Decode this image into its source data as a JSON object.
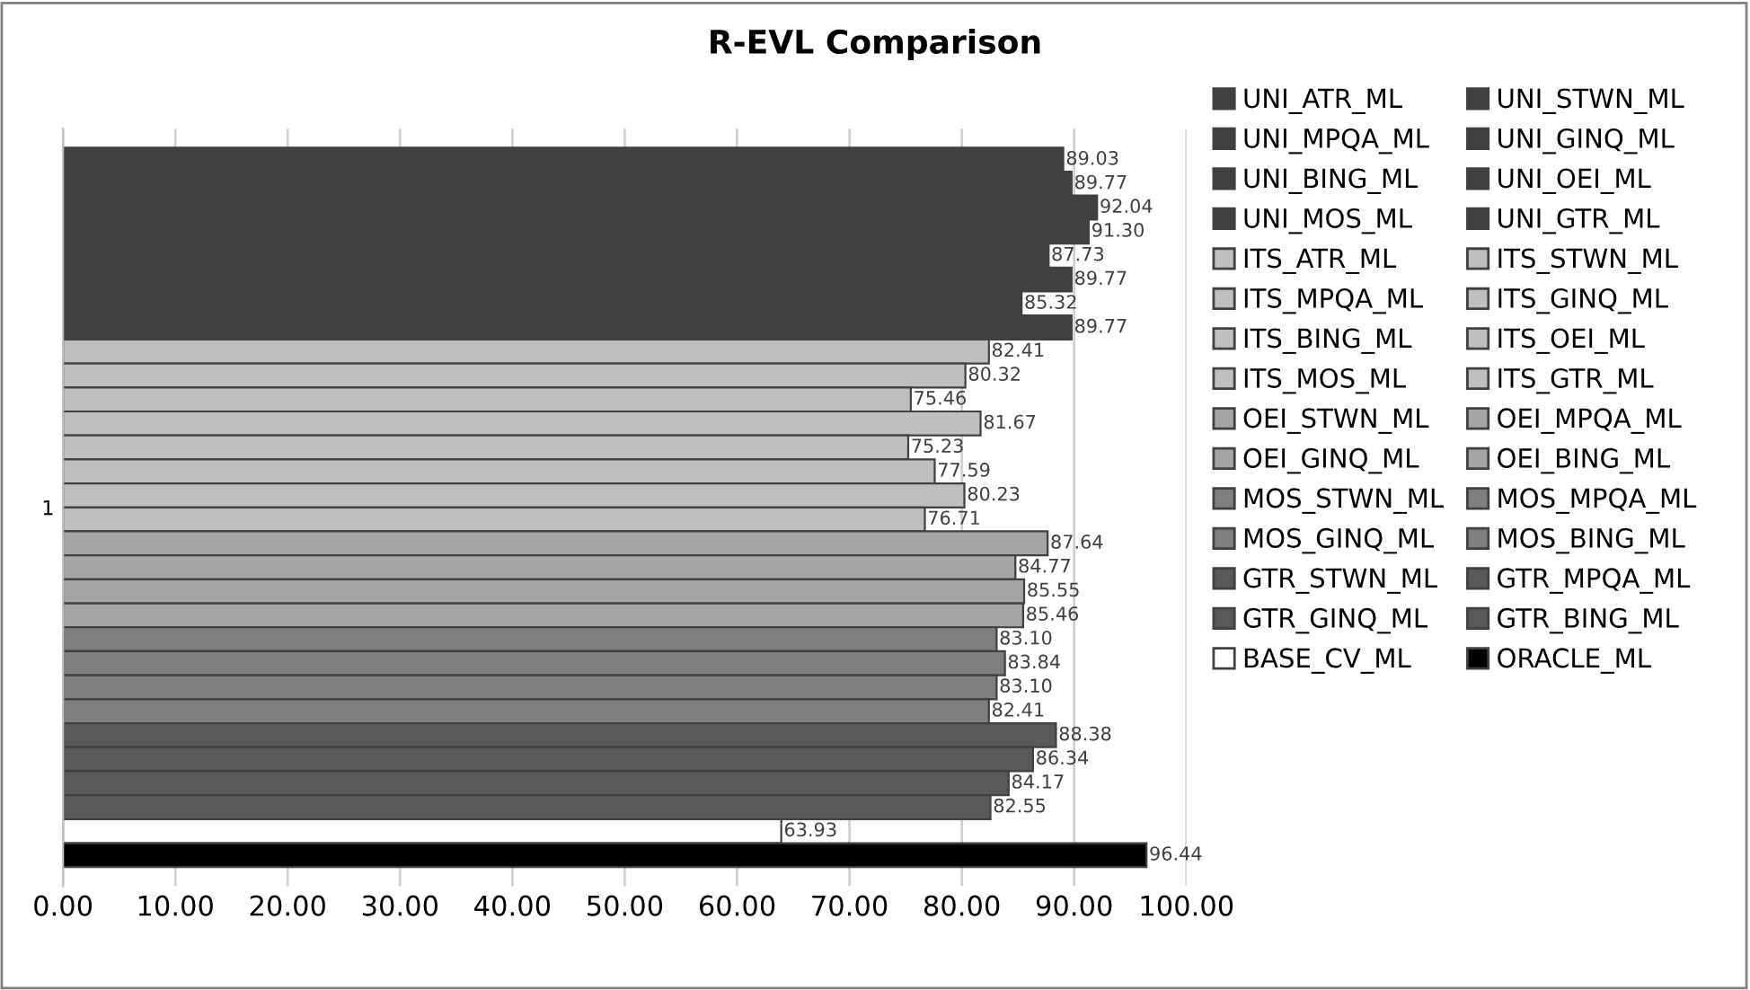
{
  "chart_data": {
    "type": "bar",
    "orientation": "horizontal",
    "title": "R-EVL Comparison",
    "categories": [
      "1"
    ],
    "grid": "x",
    "legend": "right",
    "xlim": [
      0,
      100
    ],
    "xticks": [
      {
        "value": 0,
        "label": "0.00"
      },
      {
        "value": 10,
        "label": "10.00"
      },
      {
        "value": 20,
        "label": "20.00"
      },
      {
        "value": 30,
        "label": "30.00"
      },
      {
        "value": 40,
        "label": "40.00"
      },
      {
        "value": 50,
        "label": "50.00"
      },
      {
        "value": 60,
        "label": "60.00"
      },
      {
        "value": 70,
        "label": "70.00"
      },
      {
        "value": 80,
        "label": "80.00"
      },
      {
        "value": 90,
        "label": "90.00"
      },
      {
        "value": 100,
        "label": "100.00"
      }
    ],
    "series": [
      {
        "name": "UNI_ATR_ML",
        "color": "#404040",
        "values": [
          89.03
        ],
        "value_labels": [
          "89.03"
        ]
      },
      {
        "name": "UNI_STWN_ML",
        "color": "#404040",
        "values": [
          89.77
        ],
        "value_labels": [
          "89.77"
        ]
      },
      {
        "name": "UNI_MPQA_ML",
        "color": "#404040",
        "values": [
          92.04
        ],
        "value_labels": [
          "92.04"
        ]
      },
      {
        "name": "UNI_GINQ_ML",
        "color": "#404040",
        "values": [
          91.3
        ],
        "value_labels": [
          "91.30"
        ]
      },
      {
        "name": "UNI_BING_ML",
        "color": "#404040",
        "values": [
          87.73
        ],
        "value_labels": [
          "87.73"
        ]
      },
      {
        "name": "UNI_OEI_ML",
        "color": "#404040",
        "values": [
          89.77
        ],
        "value_labels": [
          "89.77"
        ]
      },
      {
        "name": "UNI_MOS_ML",
        "color": "#404040",
        "values": [
          85.32
        ],
        "value_labels": [
          "85.32"
        ]
      },
      {
        "name": "UNI_GTR_ML",
        "color": "#404040",
        "values": [
          89.77
        ],
        "value_labels": [
          "89.77"
        ]
      },
      {
        "name": "ITS_ATR_ML",
        "color": "#bfbfbf",
        "values": [
          82.41
        ],
        "value_labels": [
          "82.41"
        ]
      },
      {
        "name": "ITS_STWN_ML",
        "color": "#bfbfbf",
        "values": [
          80.32
        ],
        "value_labels": [
          "80.32"
        ]
      },
      {
        "name": "ITS_MPQA_ML",
        "color": "#bfbfbf",
        "values": [
          75.46
        ],
        "value_labels": [
          "75.46"
        ]
      },
      {
        "name": "ITS_GINQ_ML",
        "color": "#bfbfbf",
        "values": [
          81.67
        ],
        "value_labels": [
          "81.67"
        ]
      },
      {
        "name": "ITS_BING_ML",
        "color": "#bfbfbf",
        "values": [
          75.23
        ],
        "value_labels": [
          "75.23"
        ]
      },
      {
        "name": "ITS_OEI_ML",
        "color": "#bfbfbf",
        "values": [
          77.59
        ],
        "value_labels": [
          "77.59"
        ]
      },
      {
        "name": "ITS_MOS_ML",
        "color": "#bfbfbf",
        "values": [
          80.23
        ],
        "value_labels": [
          "80.23"
        ]
      },
      {
        "name": "ITS_GTR_ML",
        "color": "#bfbfbf",
        "values": [
          76.71
        ],
        "value_labels": [
          "76.71"
        ]
      },
      {
        "name": "OEI_STWN_ML",
        "color": "#a5a5a5",
        "values": [
          87.64
        ],
        "value_labels": [
          "87.64"
        ]
      },
      {
        "name": "OEI_MPQA_ML",
        "color": "#a5a5a5",
        "values": [
          84.77
        ],
        "value_labels": [
          "84.77"
        ]
      },
      {
        "name": "OEI_GINQ_ML",
        "color": "#a5a5a5",
        "values": [
          85.55
        ],
        "value_labels": [
          "85.55"
        ]
      },
      {
        "name": "OEI_BING_ML",
        "color": "#a5a5a5",
        "values": [
          85.46
        ],
        "value_labels": [
          "85.46"
        ]
      },
      {
        "name": "MOS_STWN_ML",
        "color": "#7f7f7f",
        "values": [
          83.1
        ],
        "value_labels": [
          "83.10"
        ]
      },
      {
        "name": "MOS_MPQA_ML",
        "color": "#7f7f7f",
        "values": [
          83.84
        ],
        "value_labels": [
          "83.84"
        ]
      },
      {
        "name": "MOS_GINQ_ML",
        "color": "#7f7f7f",
        "values": [
          83.1
        ],
        "value_labels": [
          "83.10"
        ]
      },
      {
        "name": "MOS_BING_ML",
        "color": "#7f7f7f",
        "values": [
          82.41
        ],
        "value_labels": [
          "82.41"
        ]
      },
      {
        "name": "GTR_STWN_ML",
        "color": "#595959",
        "values": [
          88.38
        ],
        "value_labels": [
          "88.38"
        ]
      },
      {
        "name": "GTR_MPQA_ML",
        "color": "#595959",
        "values": [
          86.34
        ],
        "value_labels": [
          "86.34"
        ]
      },
      {
        "name": "GTR_GINQ_ML",
        "color": "#595959",
        "values": [
          84.17
        ],
        "value_labels": [
          "84.17"
        ]
      },
      {
        "name": "GTR_BING_ML",
        "color": "#595959",
        "values": [
          82.55
        ],
        "value_labels": [
          "82.55"
        ]
      },
      {
        "name": "BASE_CV_ML",
        "color": "#ffffff",
        "values": [
          63.93
        ],
        "value_labels": [
          "63.93"
        ]
      },
      {
        "name": "ORACLE_ML",
        "color": "#000000",
        "values": [
          96.44
        ],
        "value_labels": [
          "96.44"
        ]
      }
    ]
  }
}
